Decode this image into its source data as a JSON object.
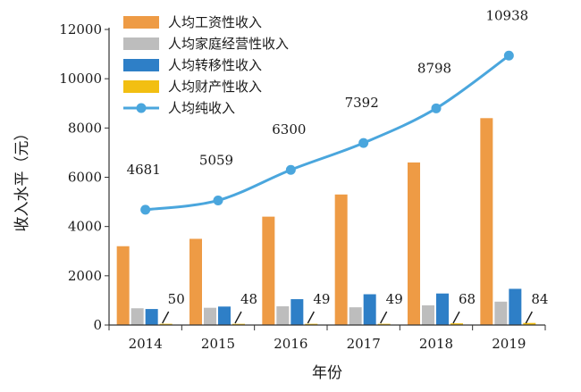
{
  "chart_data": {
    "type": "bar",
    "categories": [
      "2014",
      "2015",
      "2016",
      "2017",
      "2018",
      "2019"
    ],
    "xlabel": "年份",
    "ylabel": "收入水平（元）",
    "ylim": [
      0,
      12000
    ],
    "yticks": [
      0,
      2000,
      4000,
      6000,
      8000,
      10000,
      12000
    ],
    "legend_position": "top-left",
    "series": [
      {
        "name": "人均工资性收入",
        "type": "bar",
        "color": "#ee9b45",
        "values": [
          3200,
          3500,
          4400,
          5300,
          6600,
          8400
        ]
      },
      {
        "name": "人均家庭经营性收入",
        "type": "bar",
        "color": "#bdbdbd",
        "values": [
          680,
          700,
          760,
          720,
          800,
          950
        ]
      },
      {
        "name": "人均转移性收入",
        "type": "bar",
        "color": "#2e7fc7",
        "values": [
          650,
          750,
          1050,
          1250,
          1280,
          1470
        ]
      },
      {
        "name": "人均财产性收入",
        "type": "bar",
        "color": "#f2bf12",
        "values": [
          50,
          48,
          49,
          49,
          68,
          84
        ]
      },
      {
        "name": "人均纯收入",
        "type": "line",
        "color": "#4aa6dd",
        "values": [
          4681,
          5059,
          6300,
          7392,
          8798,
          10938
        ]
      }
    ],
    "data_labels": {
      "property_income": [
        "50",
        "48",
        "49",
        "49",
        "68",
        "84"
      ],
      "net_income": [
        "4681",
        "5059",
        "6300",
        "7392",
        "8798",
        "10938"
      ]
    }
  }
}
